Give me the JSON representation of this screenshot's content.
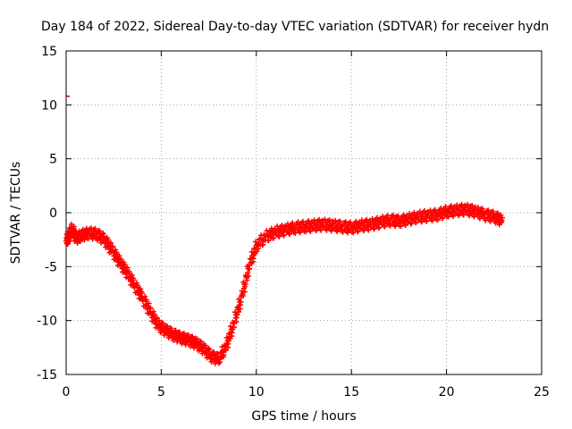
{
  "chart_data": {
    "type": "scatter",
    "title": "Day 184 of 2022, Sidereal Day-to-day VTEC variation (SDTVAR) for receiver hydn",
    "xlabel": "GPS time / hours",
    "ylabel": "SDTVAR / TECUs",
    "xlim": [
      0,
      25
    ],
    "ylim": [
      -15,
      15
    ],
    "xticks": [
      0,
      5,
      10,
      15,
      20,
      25
    ],
    "yticks": [
      -15,
      -10,
      -5,
      0,
      5,
      10,
      15
    ],
    "grid": true,
    "marker": "+",
    "series_color": "#ff0000",
    "series": [
      {
        "name": "SDTVAR",
        "x": [
          0.0,
          0.1,
          0.3,
          0.5,
          0.8,
          1.2,
          1.6,
          2.0,
          2.4,
          2.8,
          3.2,
          3.6,
          4.0,
          4.4,
          4.8,
          5.2,
          5.6,
          6.0,
          6.4,
          6.8,
          7.2,
          7.6,
          8.0,
          8.4,
          8.8,
          9.2,
          9.6,
          10.0,
          10.5,
          11.0,
          11.5,
          12.0,
          12.5,
          13.0,
          13.5,
          14.0,
          14.5,
          15.0,
          15.5,
          16.0,
          16.5,
          17.0,
          17.5,
          18.0,
          18.5,
          19.0,
          19.5,
          20.0,
          20.5,
          21.0,
          21.5,
          22.0,
          22.5,
          22.9
        ],
        "y": [
          -2.6,
          -2.2,
          -1.5,
          -2.4,
          -2.1,
          -1.9,
          -2.0,
          -2.5,
          -3.5,
          -4.6,
          -5.6,
          -6.8,
          -7.9,
          -9.2,
          -10.4,
          -10.9,
          -11.3,
          -11.6,
          -11.8,
          -12.1,
          -12.6,
          -13.3,
          -13.6,
          -12.3,
          -10.2,
          -7.8,
          -4.9,
          -3.0,
          -2.2,
          -1.8,
          -1.6,
          -1.4,
          -1.3,
          -1.2,
          -1.1,
          -1.2,
          -1.3,
          -1.4,
          -1.2,
          -1.1,
          -0.9,
          -0.7,
          -0.8,
          -0.6,
          -0.4,
          -0.3,
          -0.2,
          0.1,
          0.2,
          0.3,
          0.1,
          -0.2,
          -0.4,
          -0.7
        ]
      }
    ],
    "stray_points": [
      {
        "x": 0.0,
        "y": 10.8
      }
    ]
  }
}
